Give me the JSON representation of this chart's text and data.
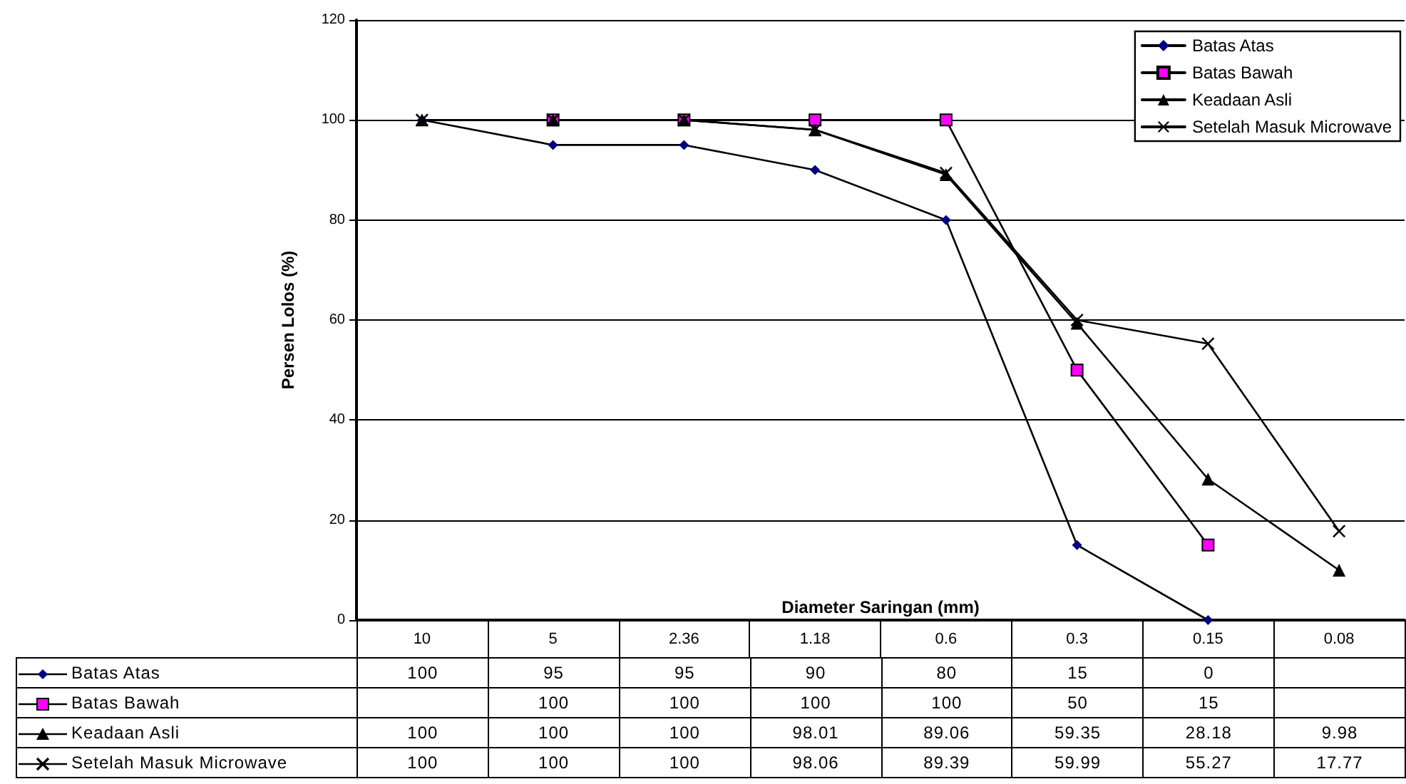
{
  "chart_data": {
    "type": "line",
    "xlabel": "Diameter Saringan (mm)",
    "ylabel": "Persen Lolos (%)",
    "categories": [
      "10",
      "5",
      "2.36",
      "1.18",
      "0.6",
      "0.3",
      "0.15",
      "0.08"
    ],
    "series": [
      {
        "name": "Batas Atas",
        "color": "#000000",
        "colors": [
          "#000080",
          "#000080",
          "#000080",
          "#000080",
          "#000080",
          "#000080",
          "#000080",
          null
        ],
        "marker": "diamond",
        "values": [
          100,
          95,
          95,
          90,
          80,
          15,
          0,
          null
        ]
      },
      {
        "name": "Batas Bawah",
        "color": "#000000",
        "colors": [
          null,
          "#ff00ff",
          "#ff00ff",
          "#ff00ff",
          "#ff00ff",
          "#ff00ff",
          "#ff00ff",
          null
        ],
        "marker": "square",
        "values": [
          null,
          100,
          100,
          100,
          100,
          50,
          15,
          null
        ]
      },
      {
        "name": "Keadaan Asli",
        "color": "#000000",
        "marker": "triangle",
        "values": [
          100,
          100,
          100,
          98.01,
          89.06,
          59.35,
          28.18,
          9.98
        ]
      },
      {
        "name": "Setelah Masuk Microwave",
        "color": "#000000",
        "marker": "cross",
        "values": [
          100,
          100,
          100,
          98.06,
          89.39,
          59.99,
          55.27,
          17.77
        ]
      }
    ],
    "ylim": [
      0,
      120
    ],
    "yticks": [
      0,
      20,
      40,
      60,
      80,
      100,
      120
    ],
    "grid": "y",
    "legend": "top right",
    "data_labels": true
  }
}
